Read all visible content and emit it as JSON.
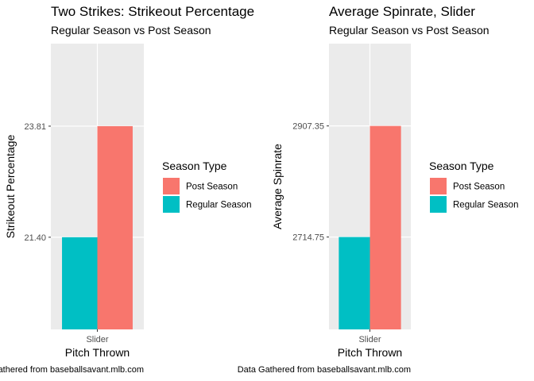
{
  "chart_data": [
    {
      "type": "bar",
      "title": "Two Strikes: Strikeout Percentage",
      "subtitle": "Regular Season vs Post Season",
      "xlabel": "Pitch Thrown",
      "ylabel": "Strikeout Percentage",
      "categories": [
        "Slider"
      ],
      "series": [
        {
          "name": "Regular Season",
          "values": [
            21.4
          ],
          "color": "#00BFC4"
        },
        {
          "name": "Post Season",
          "values": [
            23.81
          ],
          "color": "#F8766D"
        }
      ],
      "y_ticks": [
        21.4,
        23.81
      ],
      "y_tick_labels": [
        "21.40",
        "23.81"
      ],
      "ylim": [
        19.4,
        25.6
      ],
      "legend_title": "Season Type",
      "legend_items": [
        "Post Season",
        "Regular Season"
      ],
      "legend_position": "right",
      "caption": "Data Gathered from baseballsavant.mlb.com",
      "grid": true
    },
    {
      "type": "bar",
      "title": "Average Spinrate, Slider",
      "subtitle": "Regular Season vs Post Season",
      "xlabel": "Pitch Thrown",
      "ylabel": "Average Spinrate",
      "categories": [
        "Slider"
      ],
      "series": [
        {
          "name": "Regular Season",
          "values": [
            2714.75
          ],
          "color": "#00BFC4"
        },
        {
          "name": "Post Season",
          "values": [
            2907.35
          ],
          "color": "#F8766D"
        }
      ],
      "y_ticks": [
        2714.75,
        2907.35
      ],
      "y_tick_labels": [
        "2714.75",
        "2907.35"
      ],
      "ylim": [
        2554.6,
        3050.0
      ],
      "legend_title": "Season Type",
      "legend_items": [
        "Post Season",
        "Regular Season"
      ],
      "legend_position": "right",
      "caption": "Data Gathered from baseballsavant.mlb.com",
      "grid": true
    }
  ]
}
